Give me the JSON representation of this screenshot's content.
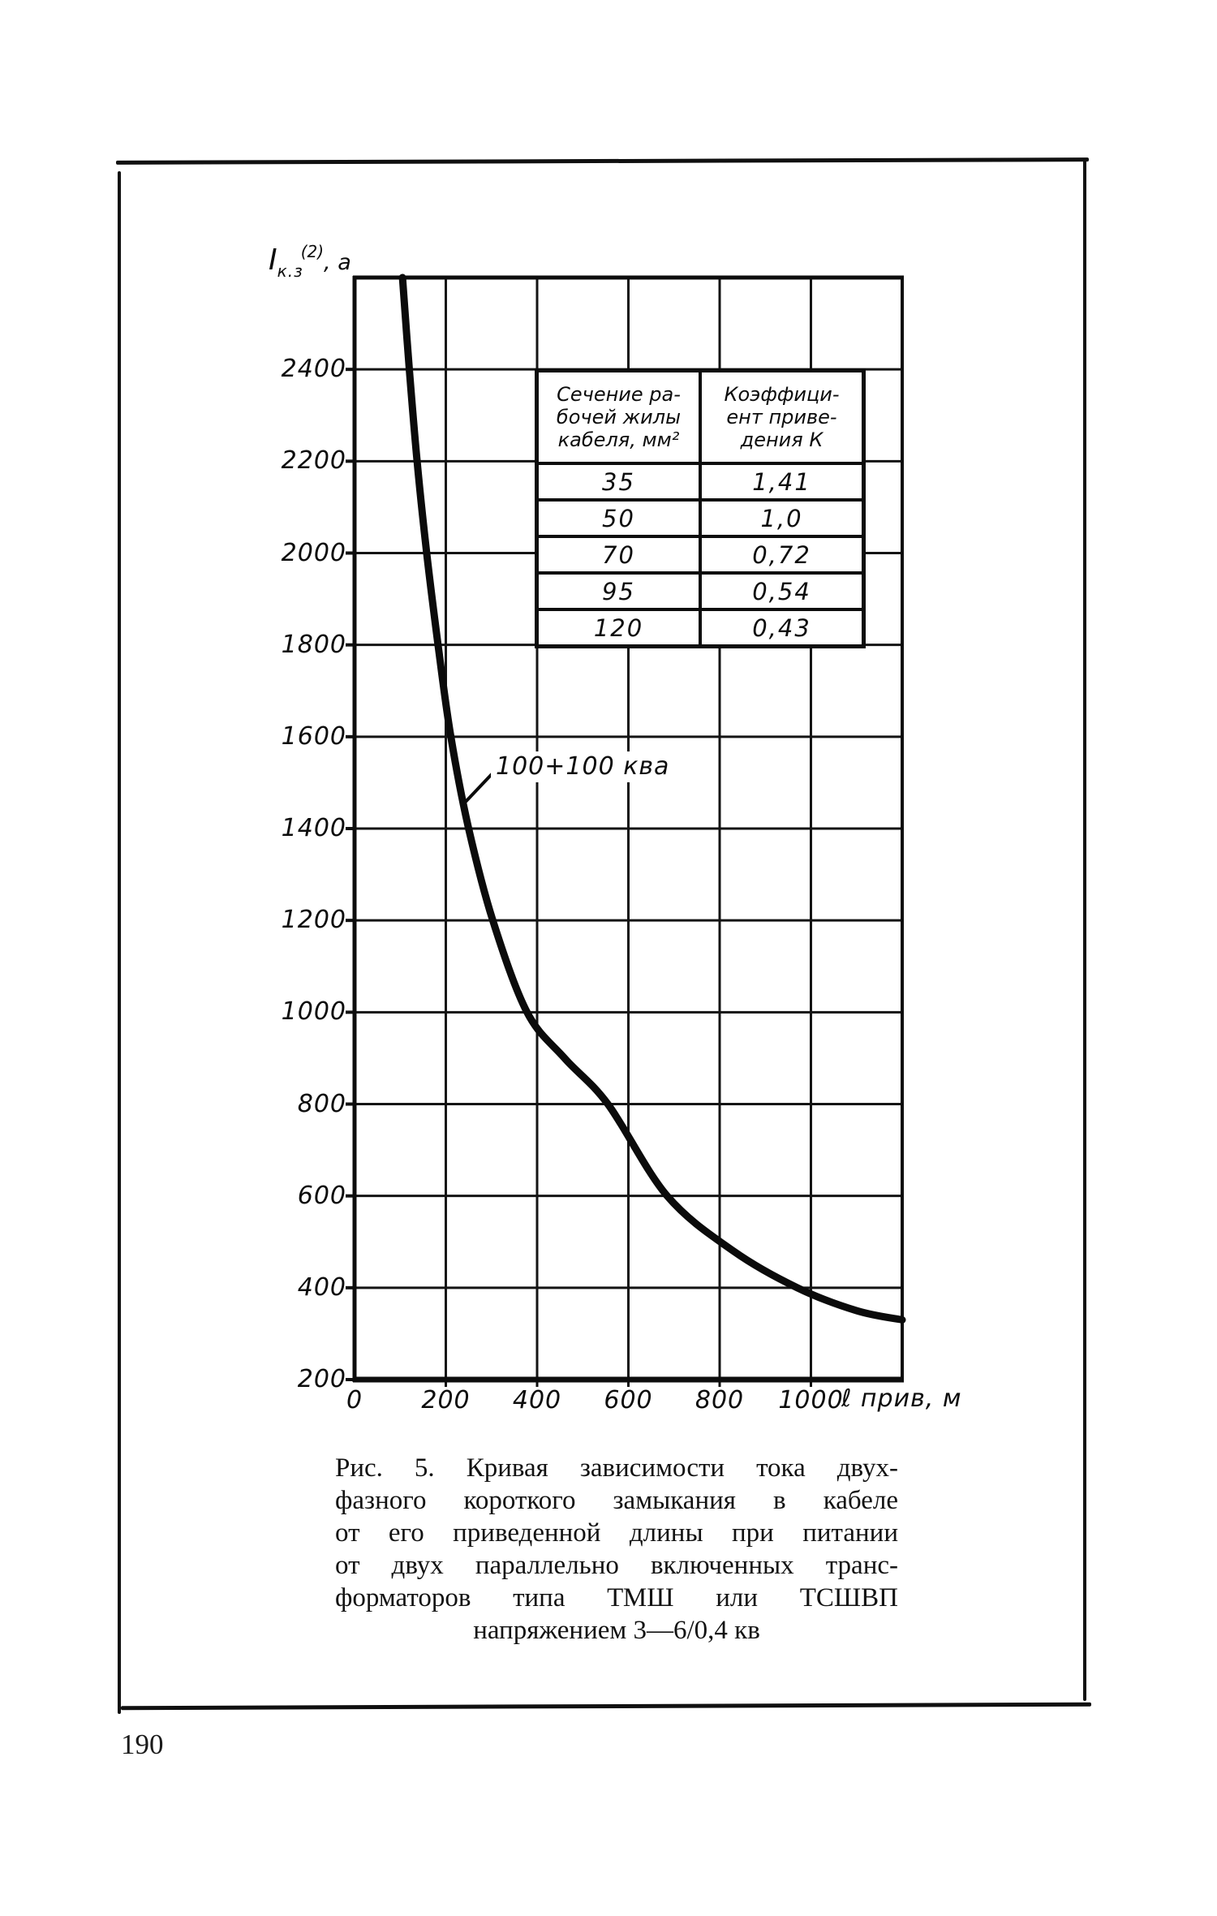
{
  "page": {
    "number": "190"
  },
  "figure": {
    "axis_label_y": {
      "base": "I",
      "sub": "к.з",
      "sup": "(2)",
      "unit": ", а"
    },
    "axis_label_x": "ℓ прив, м",
    "curve_label": "100+100 ква"
  },
  "chart_data": {
    "type": "line",
    "title": "Рис. 5. Кривая зависимости тока двухфазного короткого замыкания в кабеле от его приведенной длины",
    "xlabel": "ℓ прив, м",
    "ylabel": "Iк.з(2), а",
    "xlim": [
      0,
      1200
    ],
    "ylim": [
      200,
      2600
    ],
    "x_ticks": [
      0,
      200,
      400,
      600,
      800,
      1000
    ],
    "y_ticks": [
      200,
      400,
      600,
      800,
      1000,
      1200,
      1400,
      1600,
      1800,
      2000,
      2200,
      2400
    ],
    "grid": "on",
    "legend": "none",
    "series": [
      {
        "name": "100+100 ква",
        "points_x": [
          105,
          120,
          137,
          158,
          183,
          211,
          250,
          303,
          378,
          460,
          555,
          685,
          830,
          970,
          1100,
          1200
        ],
        "points_y": [
          2600,
          2400,
          2200,
          2000,
          1800,
          1600,
          1400,
          1200,
          1000,
          900,
          800,
          600,
          480,
          400,
          350,
          330
        ]
      }
    ],
    "inset_table": {
      "col_headers": [
        {
          "lines": [
            "Сечение ра-",
            "бочей жилы",
            "кабеля, мм²"
          ]
        },
        {
          "lines": [
            "Коэффици-",
            "ент приве-",
            "дения К"
          ]
        }
      ],
      "rows": [
        [
          "35",
          "1,41"
        ],
        [
          "50",
          "1,0"
        ],
        [
          "70",
          "0,72"
        ],
        [
          "95",
          "0,54"
        ],
        [
          "120",
          "0,43"
        ]
      ]
    }
  },
  "caption": {
    "lines": [
      "Рис. 5. Кривая зависимости тока двух-",
      "фазного короткого замыкания в кабеле",
      "от его приведенной длины при питании",
      "от двух параллельно включенных транс-",
      "форматоров типа ТМШ или ТСШВП",
      "напряжением 3—6/0,4 кв"
    ]
  }
}
